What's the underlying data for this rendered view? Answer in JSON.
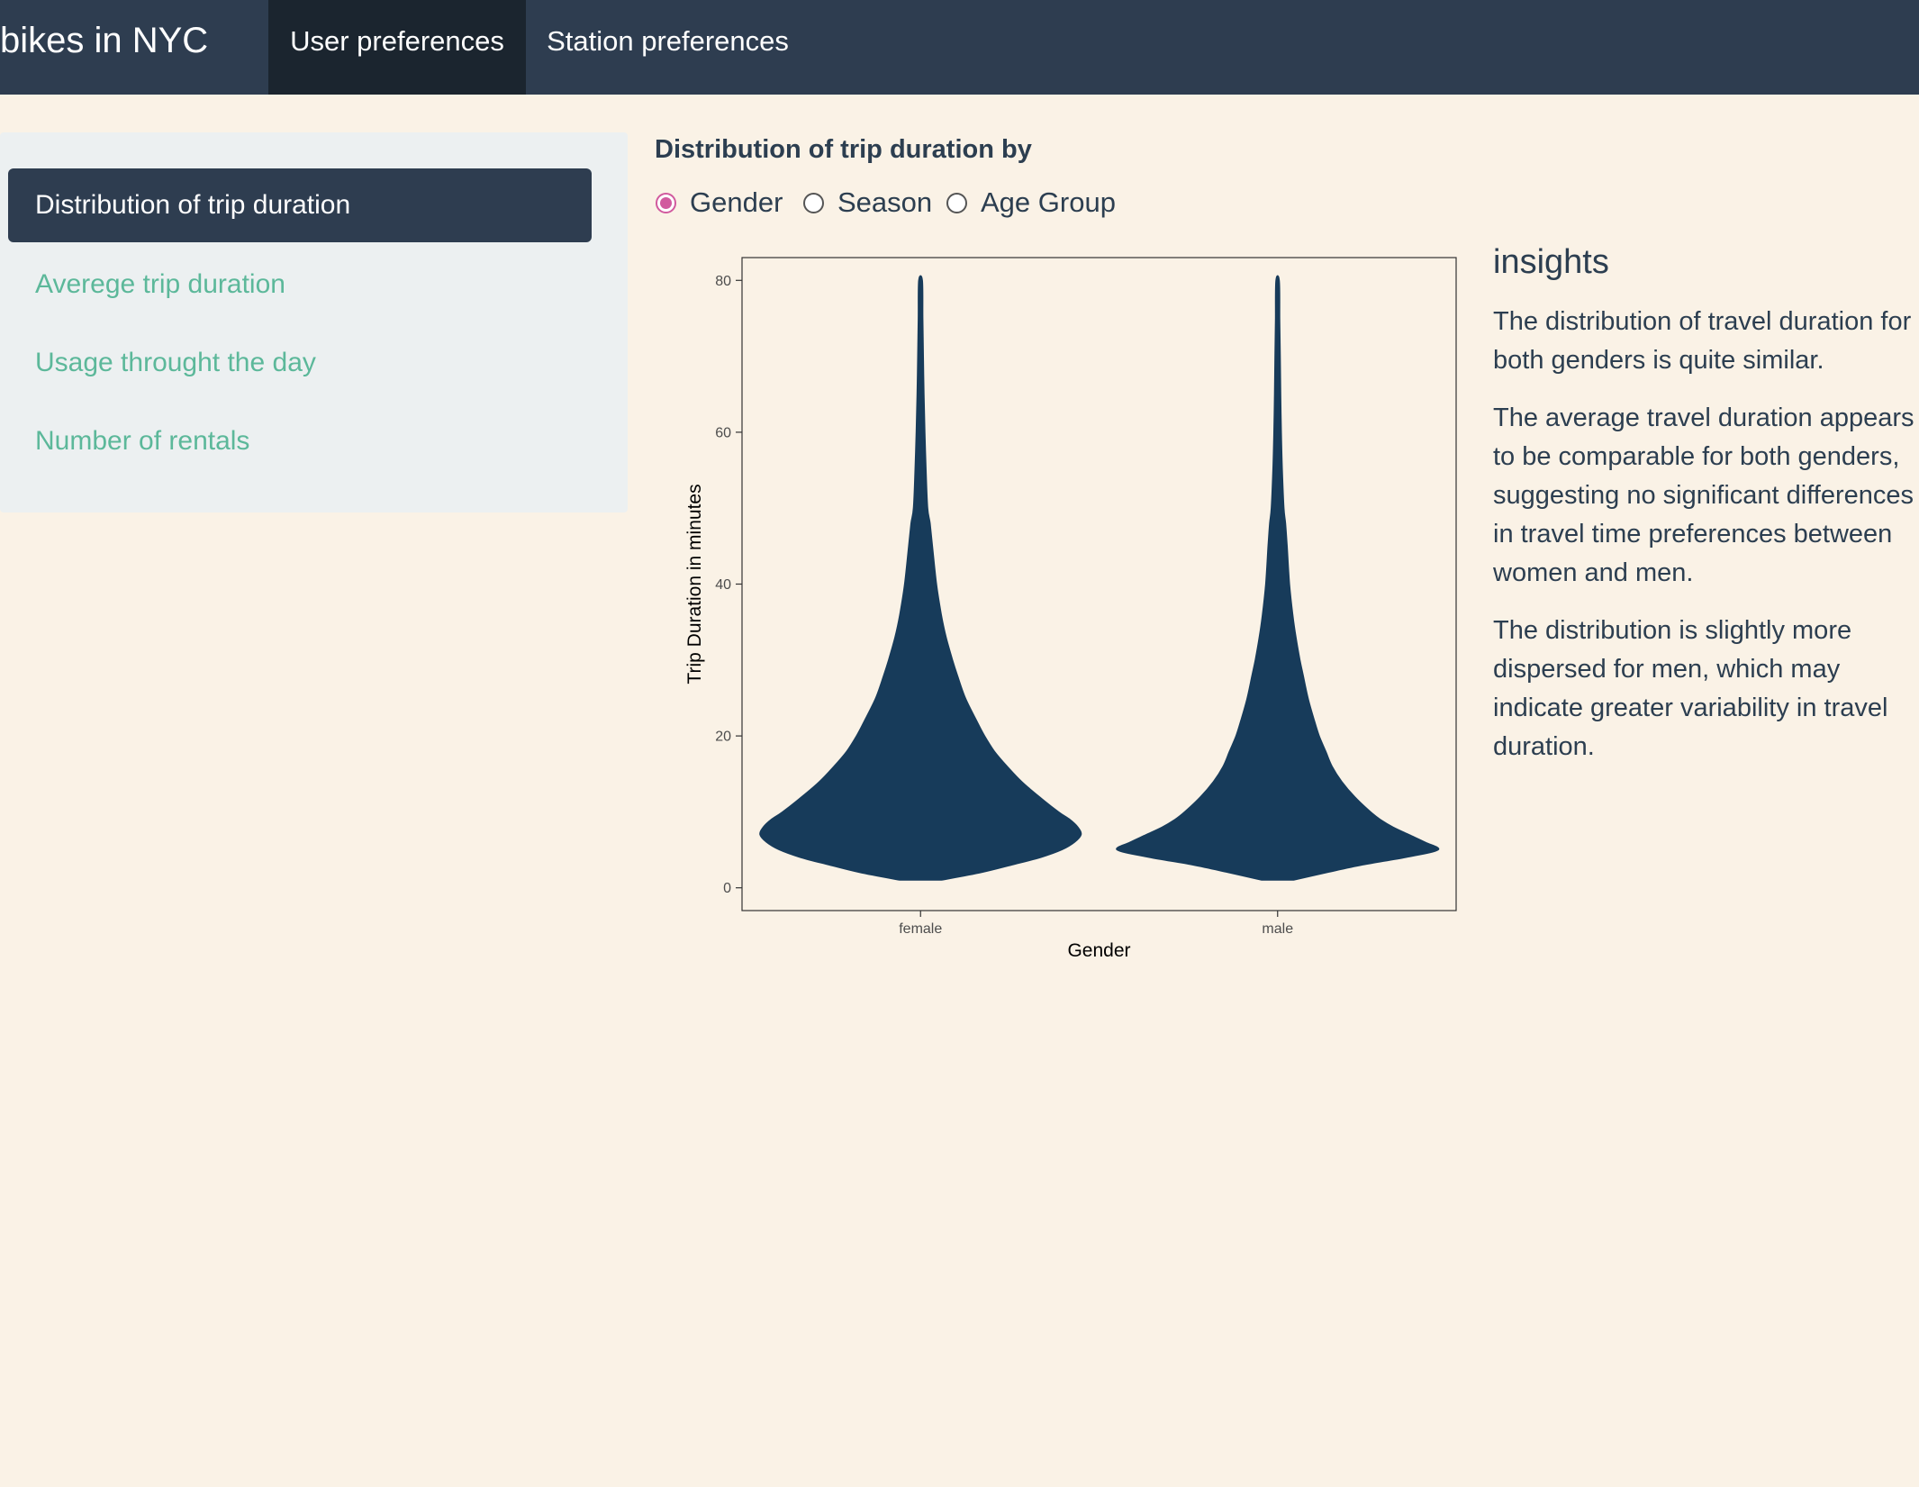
{
  "navbar": {
    "brand": "bikes in NYC",
    "tabs": [
      {
        "label": "User preferences",
        "active": true
      },
      {
        "label": "Station preferences",
        "active": false
      }
    ],
    "background_color": "#2e3d50",
    "active_tab_color": "#1b252f"
  },
  "sidebar": {
    "items": [
      {
        "label": "Distribution of trip duration",
        "active": true
      },
      {
        "label": "Averege trip duration",
        "active": false
      },
      {
        "label": "Usage throught the day",
        "active": false
      },
      {
        "label": "Number of rentals",
        "active": false
      }
    ],
    "link_color": "#5cb89a"
  },
  "controls": {
    "label": "Distribution of trip duration by",
    "options": [
      "Gender",
      "Season",
      "Age Group"
    ],
    "selected": "Gender",
    "accent_color": "#d15a9e"
  },
  "chart_data": {
    "type": "violin",
    "categories": [
      "female",
      "male"
    ],
    "xlabel": "Gender",
    "ylabel": "Trip Duration in minutes",
    "ylim": [
      -3,
      83
    ],
    "yticks": [
      0,
      20,
      40,
      60,
      80
    ],
    "fill_color": "#173b5a",
    "grid": false,
    "series": [
      {
        "category": "female",
        "min": 1,
        "max": 80,
        "density_profile": [
          [
            1,
            0.13
          ],
          [
            2,
            0.38
          ],
          [
            3,
            0.57
          ],
          [
            4,
            0.75
          ],
          [
            5,
            0.88
          ],
          [
            6,
            0.96
          ],
          [
            7,
            1.0
          ],
          [
            8,
            0.98
          ],
          [
            9,
            0.93
          ],
          [
            10,
            0.86
          ],
          [
            12,
            0.74
          ],
          [
            14,
            0.63
          ],
          [
            16,
            0.54
          ],
          [
            18,
            0.46
          ],
          [
            20,
            0.4
          ],
          [
            22,
            0.35
          ],
          [
            25,
            0.28
          ],
          [
            28,
            0.23
          ],
          [
            30,
            0.2
          ],
          [
            33,
            0.16
          ],
          [
            36,
            0.13
          ],
          [
            40,
            0.1
          ],
          [
            45,
            0.075
          ],
          [
            48,
            0.06
          ],
          [
            50,
            0.045
          ],
          [
            55,
            0.035
          ],
          [
            60,
            0.028
          ],
          [
            65,
            0.022
          ],
          [
            70,
            0.018
          ],
          [
            75,
            0.015
          ],
          [
            80,
            0.012
          ]
        ]
      },
      {
        "category": "male",
        "min": 1,
        "max": 80,
        "density_profile": [
          [
            1,
            0.1
          ],
          [
            2,
            0.31
          ],
          [
            3,
            0.53
          ],
          [
            4,
            0.8
          ],
          [
            5,
            1.0
          ],
          [
            6,
            0.92
          ],
          [
            7,
            0.82
          ],
          [
            8,
            0.72
          ],
          [
            9,
            0.64
          ],
          [
            10,
            0.58
          ],
          [
            12,
            0.48
          ],
          [
            14,
            0.4
          ],
          [
            16,
            0.34
          ],
          [
            18,
            0.3
          ],
          [
            20,
            0.26
          ],
          [
            22,
            0.23
          ],
          [
            25,
            0.19
          ],
          [
            28,
            0.16
          ],
          [
            30,
            0.14
          ],
          [
            33,
            0.115
          ],
          [
            36,
            0.095
          ],
          [
            40,
            0.075
          ],
          [
            45,
            0.06
          ],
          [
            48,
            0.05
          ],
          [
            50,
            0.04
          ],
          [
            55,
            0.03
          ],
          [
            60,
            0.024
          ],
          [
            65,
            0.02
          ],
          [
            70,
            0.017
          ],
          [
            75,
            0.014
          ],
          [
            80,
            0.011
          ]
        ]
      }
    ]
  },
  "insights": {
    "title": "insights",
    "paragraphs": [
      "The distribution of travel duration for both genders is quite similar.",
      "The average travel duration appears to be comparable for both genders, suggesting no significant differences in travel time preferences between women and men.",
      "The distribution is slightly more dispersed for men, which may indicate greater variability in travel duration."
    ]
  }
}
